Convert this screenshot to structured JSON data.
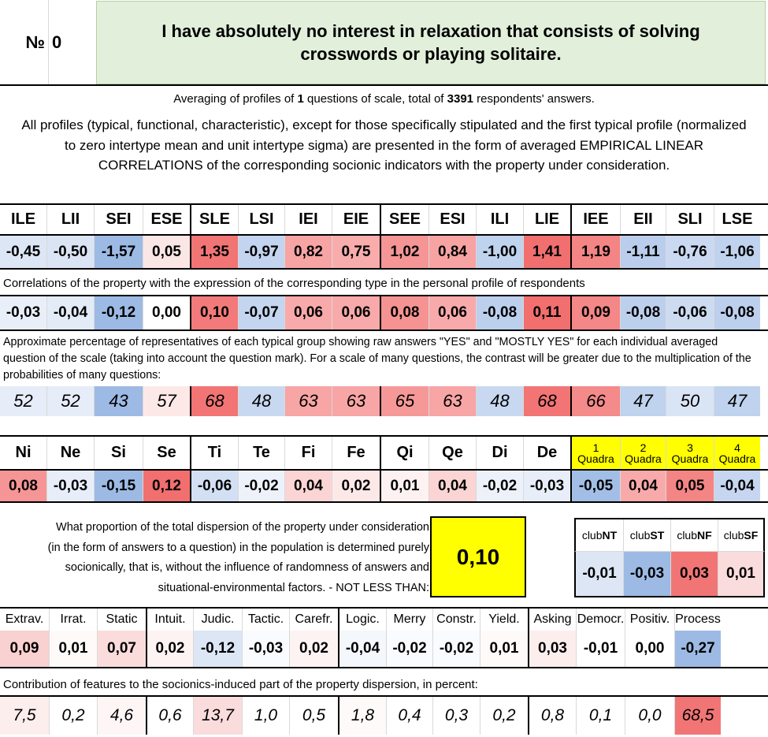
{
  "header": {
    "number_label": "№",
    "number_value": "0",
    "question": "I have absolutely no interest in relaxation that consists of solving crosswords or playing solitaire."
  },
  "averaging": {
    "prefix": "Averaging of profiles of ",
    "count": "1",
    "middle": " questions of scale, total of ",
    "total": "3391",
    "suffix": " respondents' answers."
  },
  "intro_text": "All profiles (typical, functional, characteristic), except for those specifically stipulated and the first typical profile (normalized to zero intertype mean and unit intertype sigma) are presented in the form of averaged EMPIRICAL LINEAR CORRELATIONS of the corresponding socionic indicators with the property under consideration.",
  "types": {
    "labels": [
      "ILE",
      "LII",
      "SEI",
      "ESE",
      "SLE",
      "LSI",
      "IEI",
      "EIE",
      "SEE",
      "ESI",
      "ILI",
      "LIE",
      "IEE",
      "EII",
      "SLI",
      "LSE"
    ],
    "values": [
      "-0,45",
      "-0,50",
      "-1,57",
      "0,05",
      "1,35",
      "-0,97",
      "0,82",
      "0,75",
      "1,02",
      "0,84",
      "-1,00",
      "1,41",
      "1,19",
      "-1,11",
      "-0,76",
      "-1,06"
    ],
    "colors": [
      "#dde6f5",
      "#dbe4f4",
      "#9dbae4",
      "#fbe6e6",
      "#f27575",
      "#c2d4ef",
      "#f7a4a4",
      "#f8acac",
      "#f59595",
      "#f7a3a3",
      "#bfd2ee",
      "#f16f6f",
      "#f48585",
      "#bacdec",
      "#cad9f1",
      "#bfd2ee"
    ]
  },
  "correlations": {
    "caption": "Correlations of the property with the expression of the corresponding type in the personal profile of respondents",
    "values": [
      "-0,03",
      "-0,04",
      "-0,12",
      "0,00",
      "0,10",
      "-0,07",
      "0,06",
      "0,06",
      "0,08",
      "0,06",
      "-0,08",
      "0,11",
      "0,09",
      "-0,08",
      "-0,06",
      "-0,08"
    ],
    "colors": [
      "#e9eff9",
      "#e3ebf7",
      "#9dbae4",
      "#ffffff",
      "#f37a7a",
      "#c3d5ef",
      "#f8aaaa",
      "#f8aaaa",
      "#f59393",
      "#f8aaaa",
      "#bccfed",
      "#f16f6f",
      "#f48787",
      "#bccfed",
      "#cddbf1",
      "#bccfed"
    ]
  },
  "percentages": {
    "caption": "Approximate percentage of representatives of each typical group showing raw answers \"YES\" and \"MOSTLY YES\" for each individual averaged question of the scale (taking into account the question mark). For a scale of many questions, the contrast will be greater due to the multiplication of the probabilities of many questions:",
    "values": [
      "52",
      "52",
      "43",
      "57",
      "68",
      "48",
      "63",
      "63",
      "65",
      "63",
      "48",
      "68",
      "66",
      "47",
      "50",
      "47"
    ],
    "colors": [
      "#e6edf8",
      "#e6edf8",
      "#9dbae4",
      "#fde8e8",
      "#f27474",
      "#c8d8f0",
      "#f7a5a5",
      "#f7a5a5",
      "#f69898",
      "#f7a5a5",
      "#c8d8f0",
      "#f27474",
      "#f48a8a",
      "#bfd2ee",
      "#d9e4f5",
      "#bfd2ee"
    ]
  },
  "functions": {
    "labels": [
      "Ni",
      "Ne",
      "Si",
      "Se",
      "Ti",
      "Te",
      "Fi",
      "Fe",
      "Qi",
      "Qe",
      "Di",
      "De"
    ],
    "values": [
      "0,08",
      "-0,03",
      "-0,15",
      "0,12",
      "-0,06",
      "-0,02",
      "0,04",
      "0,02",
      "0,01",
      "0,04",
      "-0,02",
      "-0,03"
    ],
    "colors": [
      "#f59595",
      "#e8eef9",
      "#9dbae4",
      "#f16f6f",
      "#d3dff3",
      "#edf2fa",
      "#fbd4d4",
      "#fde8e8",
      "#fdf1f1",
      "#fbd4d4",
      "#edf2fa",
      "#e8eef9"
    ]
  },
  "quadras": {
    "labels": [
      {
        "num": "1",
        "word": "Quadra"
      },
      {
        "num": "2",
        "word": "Quadra"
      },
      {
        "num": "3",
        "word": "Quadra"
      },
      {
        "num": "4",
        "word": "Quadra"
      }
    ],
    "values": [
      "-0,05",
      "0,04",
      "0,05",
      "-0,04"
    ],
    "colors": [
      "#a3bee6",
      "#f8aaaa",
      "#f48585",
      "#c6d6f0"
    ],
    "header_color": "#ffff00"
  },
  "dispersion": {
    "text": "What proportion of the total dispersion of the property under consideration (in the form of answers to a question) in the population is determined purely socionically, that is, without the influence of randomness of answers and situational-environmental factors. - NOT LESS THAN:",
    "value": "0,10",
    "value_color": "#ffff00"
  },
  "clubs": {
    "labels": [
      {
        "prefix": "club",
        "bold": "NT"
      },
      {
        "prefix": "club",
        "bold": "ST"
      },
      {
        "prefix": "club",
        "bold": "NF"
      },
      {
        "prefix": "club",
        "bold": "SF"
      }
    ],
    "values": [
      "-0,01",
      "-0,03",
      "0,03",
      "0,01"
    ],
    "colors": [
      "#dde6f5",
      "#9dbae4",
      "#f27575",
      "#fbdcdc"
    ]
  },
  "features": {
    "labels": [
      "Extrav.",
      "Irrat.",
      "Static",
      "Intuit.",
      "Judic.",
      "Tactic.",
      "Carefr.",
      "Logic.",
      "Merry",
      "Constr.",
      "Yield.",
      "Asking",
      "Democr.",
      "Positiv.",
      "Process"
    ],
    "values": [
      "0,09",
      "0,01",
      "0,07",
      "0,02",
      "-0,12",
      "-0,03",
      "0,02",
      "-0,04",
      "-0,02",
      "-0,02",
      "0,01",
      "0,03",
      "-0,01",
      "0,00",
      "-0,27"
    ],
    "colors": [
      "#fad1d1",
      "#fffafa",
      "#fbdcdc",
      "#fef3f3",
      "#dce6f5",
      "#fafbfe",
      "#fef3f3",
      "#f4f7fc",
      "#fafbfe",
      "#fafbfe",
      "#fffafa",
      "#fdeeee",
      "#ffffff",
      "#ffffff",
      "#9dbae4"
    ]
  },
  "contributions": {
    "caption": "Contribution of features to the sociоnics-induced part of the property dispersion, in percent:",
    "values": [
      "7,5",
      "0,2",
      "4,6",
      "0,6",
      "13,7",
      "1,0",
      "0,5",
      "1,8",
      "0,4",
      "0,3",
      "0,2",
      "0,8",
      "0,1",
      "0,0",
      "68,5"
    ],
    "colors": [
      "#fdeeee",
      "#ffffff",
      "#fef5f5",
      "#ffffff",
      "#fbdcdc",
      "#ffffff",
      "#ffffff",
      "#fffafa",
      "#ffffff",
      "#ffffff",
      "#ffffff",
      "#ffffff",
      "#ffffff",
      "#ffffff",
      "#f27575"
    ]
  }
}
